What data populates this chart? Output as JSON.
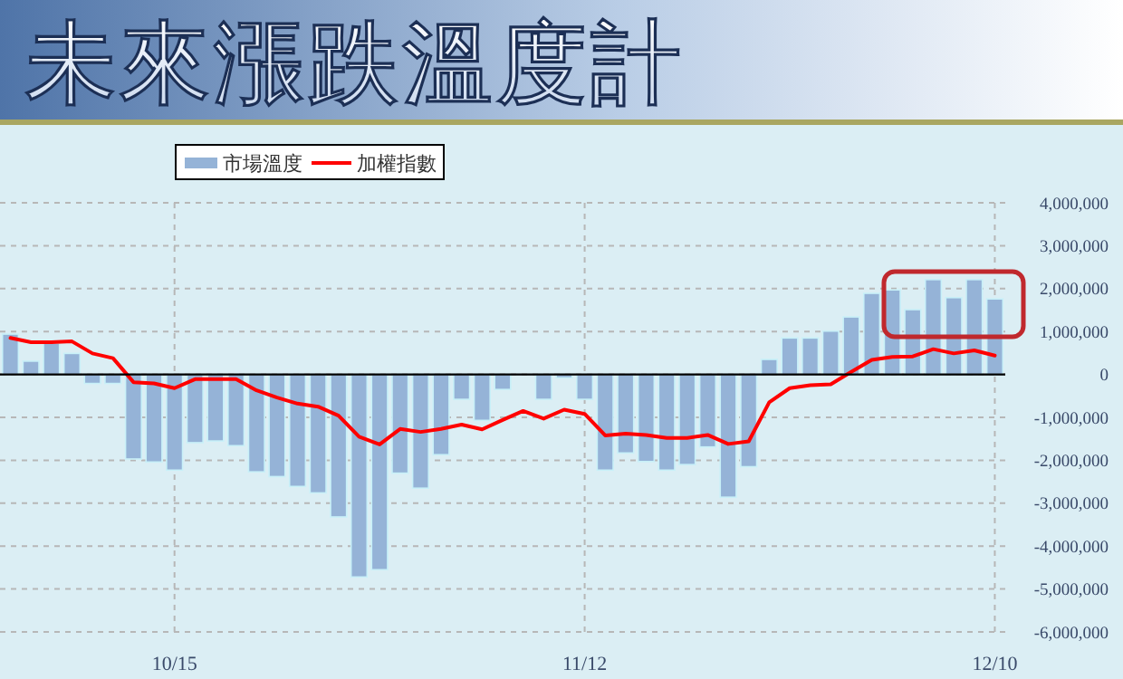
{
  "chart_data": {
    "type": "bar",
    "title": "未來漲跌溫度計",
    "categories": [
      null,
      null,
      null,
      null,
      null,
      null,
      null,
      null,
      "10/15",
      null,
      null,
      null,
      null,
      null,
      null,
      null,
      null,
      null,
      null,
      null,
      null,
      null,
      null,
      null,
      null,
      null,
      null,
      null,
      "11/12",
      null,
      null,
      null,
      null,
      null,
      null,
      null,
      null,
      null,
      null,
      null,
      null,
      null,
      null,
      null,
      null,
      null,
      null,
      null,
      "12/10"
    ],
    "series": [
      {
        "name": "市場溫度",
        "color": "#95b3d7",
        "values": [
          940000,
          310000,
          730000,
          490000,
          -210000,
          -210000,
          -1970000,
          -2040000,
          -2230000,
          -1590000,
          -1550000,
          -1660000,
          -2270000,
          -2380000,
          -2610000,
          -2760000,
          -3320000,
          -4720000,
          -4550000,
          -2300000,
          -2650000,
          -1870000,
          -580000,
          -1070000,
          -350000,
          0,
          -580000,
          -80000,
          -580000,
          -2230000,
          -1830000,
          -2030000,
          -2230000,
          -2100000,
          -1690000,
          -2860000,
          -2150000,
          350000,
          850000,
          850000,
          1010000,
          1340000,
          1890000,
          1970000,
          1510000,
          2210000,
          1790000,
          2210000,
          1760000
        ]
      },
      {
        "name": "加權指數",
        "type": "line",
        "color": "#ff0000",
        "values": [
          850000,
          750000,
          750000,
          770000,
          490000,
          380000,
          -180000,
          -210000,
          -320000,
          -110000,
          -110000,
          -110000,
          -370000,
          -540000,
          -680000,
          -750000,
          -960000,
          -1450000,
          -1630000,
          -1270000,
          -1340000,
          -1270000,
          -1170000,
          -1280000,
          -1060000,
          -850000,
          -1030000,
          -820000,
          -920000,
          -1420000,
          -1380000,
          -1410000,
          -1480000,
          -1480000,
          -1410000,
          -1620000,
          -1560000,
          -650000,
          -320000,
          -250000,
          -230000,
          60000,
          340000,
          410000,
          420000,
          590000,
          490000,
          560000,
          440000
        ]
      }
    ],
    "ylim": [
      -6000000,
      4000000
    ],
    "yticks": [
      {
        "value": -6000000,
        "label": "-6,000,000"
      },
      {
        "value": -5000000,
        "label": "-5,000,000"
      },
      {
        "value": -4000000,
        "label": "-4,000,000"
      },
      {
        "value": -3000000,
        "label": "-3,000,000"
      },
      {
        "value": -2000000,
        "label": "-2,000,000"
      },
      {
        "value": -1000000,
        "label": "-1,000,000"
      },
      0,
      {
        "value": 1000000,
        "label": "1,000,000"
      },
      {
        "value": 2000000,
        "label": "2,000,000"
      },
      {
        "value": 3000000,
        "label": "3,000,000"
      },
      {
        "value": 4000000,
        "label": "4,000,000"
      }
    ],
    "grid": true,
    "legend": "top left"
  }
}
